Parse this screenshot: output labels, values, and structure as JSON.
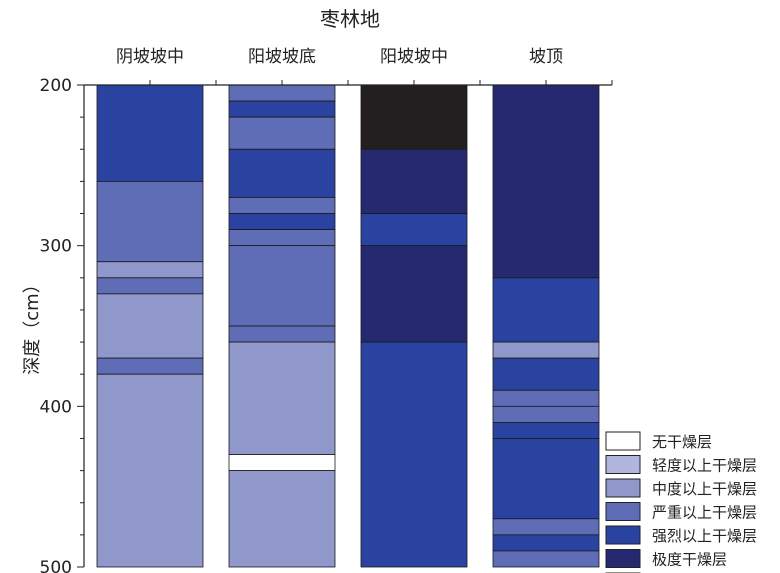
{
  "chart_data": {
    "type": "stacked-column",
    "title": "枣林地",
    "xlabel": "",
    "ylabel": "深度（cm）",
    "ylim": [
      200,
      500
    ],
    "yticks": [
      "200",
      "300",
      "400",
      "500"
    ],
    "y_inverted": true,
    "categories": [
      "阴坡坡中",
      "阳坡坡底",
      "阳坡坡中",
      "坡顶"
    ],
    "classes": [
      {
        "key": "none",
        "name": "无干燥层",
        "color": "#ffffff"
      },
      {
        "key": "light",
        "name": "轻度以上干燥层",
        "color": "#b0b6de"
      },
      {
        "key": "moderate",
        "name": "中度以上干燥层",
        "color": "#8f97cb"
      },
      {
        "key": "severe",
        "name": "严重以上干燥层",
        "color": "#5f6cb6"
      },
      {
        "key": "strong",
        "name": "强烈以上干燥层",
        "color": "#2a42a0"
      },
      {
        "key": "extreme",
        "name": "极度干燥层",
        "color": "#252a70"
      },
      {
        "key": "black",
        "name": "",
        "color": "#231f20"
      }
    ],
    "legend_position": "bottom-right",
    "columns": [
      {
        "category": "阴坡坡中",
        "layers": [
          {
            "from": 200,
            "to": 260,
            "class": "strong"
          },
          {
            "from": 260,
            "to": 310,
            "class": "severe"
          },
          {
            "from": 310,
            "to": 320,
            "class": "moderate"
          },
          {
            "from": 320,
            "to": 330,
            "class": "severe"
          },
          {
            "from": 330,
            "to": 370,
            "class": "moderate"
          },
          {
            "from": 370,
            "to": 380,
            "class": "severe"
          },
          {
            "from": 380,
            "to": 500,
            "class": "moderate"
          }
        ]
      },
      {
        "category": "阳坡坡底",
        "layers": [
          {
            "from": 200,
            "to": 210,
            "class": "severe"
          },
          {
            "from": 210,
            "to": 220,
            "class": "strong"
          },
          {
            "from": 220,
            "to": 240,
            "class": "severe"
          },
          {
            "from": 240,
            "to": 270,
            "class": "strong"
          },
          {
            "from": 270,
            "to": 280,
            "class": "severe"
          },
          {
            "from": 280,
            "to": 290,
            "class": "strong"
          },
          {
            "from": 290,
            "to": 300,
            "class": "severe"
          },
          {
            "from": 300,
            "to": 350,
            "class": "severe"
          },
          {
            "from": 350,
            "to": 360,
            "class": "severe"
          },
          {
            "from": 360,
            "to": 430,
            "class": "moderate"
          },
          {
            "from": 430,
            "to": 440,
            "class": "none"
          },
          {
            "from": 440,
            "to": 500,
            "class": "moderate"
          }
        ]
      },
      {
        "category": "阳坡坡中",
        "layers": [
          {
            "from": 200,
            "to": 240,
            "class": "black"
          },
          {
            "from": 240,
            "to": 280,
            "class": "extreme"
          },
          {
            "from": 280,
            "to": 300,
            "class": "strong"
          },
          {
            "from": 300,
            "to": 360,
            "class": "extreme"
          },
          {
            "from": 360,
            "to": 500,
            "class": "strong"
          }
        ]
      },
      {
        "category": "坡顶",
        "layers": [
          {
            "from": 200,
            "to": 320,
            "class": "extreme"
          },
          {
            "from": 320,
            "to": 360,
            "class": "strong"
          },
          {
            "from": 360,
            "to": 370,
            "class": "moderate"
          },
          {
            "from": 370,
            "to": 390,
            "class": "strong"
          },
          {
            "from": 390,
            "to": 400,
            "class": "severe"
          },
          {
            "from": 400,
            "to": 410,
            "class": "severe"
          },
          {
            "from": 410,
            "to": 420,
            "class": "strong"
          },
          {
            "from": 420,
            "to": 470,
            "class": "strong"
          },
          {
            "from": 470,
            "to": 480,
            "class": "severe"
          },
          {
            "from": 480,
            "to": 490,
            "class": "strong"
          },
          {
            "from": 490,
            "to": 500,
            "class": "severe"
          }
        ]
      }
    ]
  }
}
